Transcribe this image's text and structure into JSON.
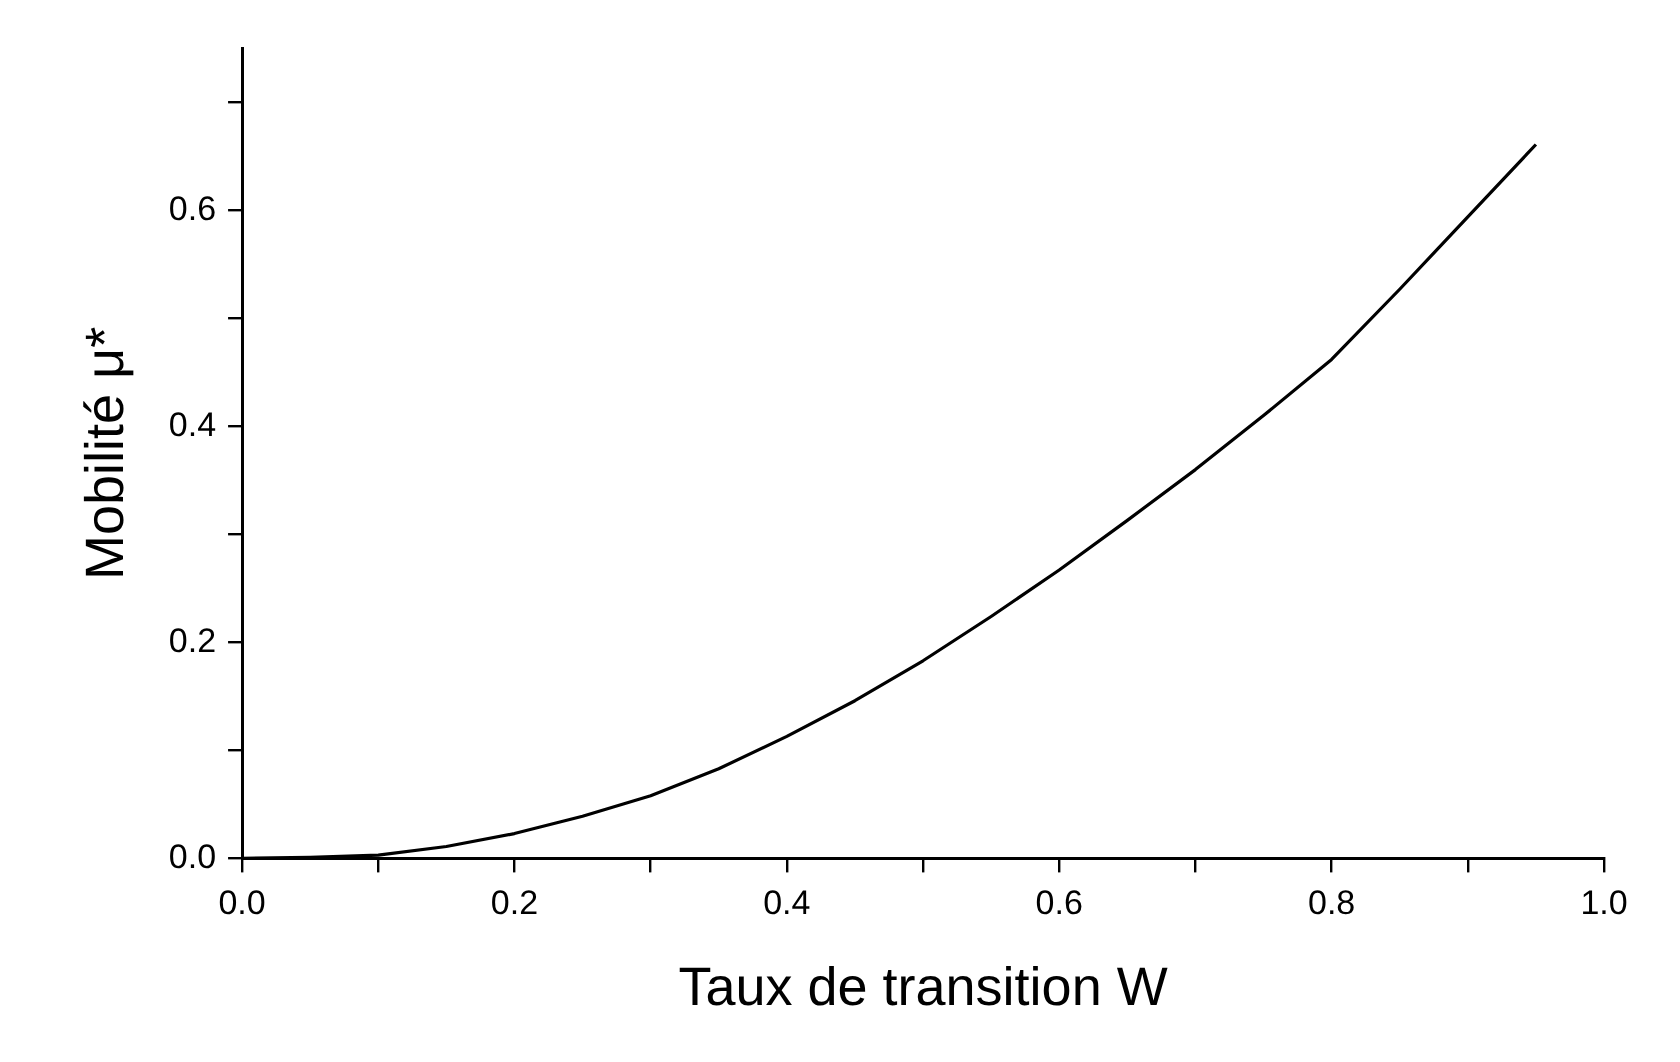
{
  "chart_data": {
    "type": "line",
    "xlabel": "Taux de transition W",
    "ylabel": "Mobilité μ*",
    "x": [
      0,
      0.05,
      0.1,
      0.15,
      0.2,
      0.25,
      0.3,
      0.35,
      0.4,
      0.45,
      0.5,
      0.55,
      0.6,
      0.65,
      0.7,
      0.75,
      0.8,
      0.85,
      0.9,
      0.95
    ],
    "series": [
      {
        "color": "#000000",
        "values": [
          0,
          0.001,
          0.003,
          0.011,
          0.023,
          0.039,
          0.058,
          0.083,
          0.113,
          0.146,
          0.183,
          0.224,
          0.267,
          0.313,
          0.36,
          0.41,
          0.462,
          0.527,
          0.594,
          0.661
        ]
      }
    ],
    "xlim": [
      0,
      1
    ],
    "ylim": [
      0,
      0.75
    ],
    "xticks": [
      {
        "value": 0,
        "label": "0.0"
      },
      {
        "value": 0.1,
        "label": null
      },
      0.2,
      {
        "value": 0.3,
        "label": null
      },
      0.4,
      {
        "value": 0.5,
        "label": null
      },
      0.6,
      {
        "value": 0.7,
        "label": null
      },
      0.8,
      {
        "value": 0.9,
        "label": null
      },
      {
        "value": 1,
        "label": "1.0"
      }
    ],
    "yticks": [
      {
        "value": 0,
        "label": "0.0"
      },
      {
        "value": 0.1,
        "label": null
      },
      0.2,
      {
        "value": 0.3,
        "label": null
      },
      0.4,
      {
        "value": 0.5,
        "label": null
      },
      0.6,
      {
        "value": 0.7,
        "label": null
      }
    ],
    "grid": false,
    "legend": false,
    "marker": "none",
    "line_style": "solid"
  }
}
